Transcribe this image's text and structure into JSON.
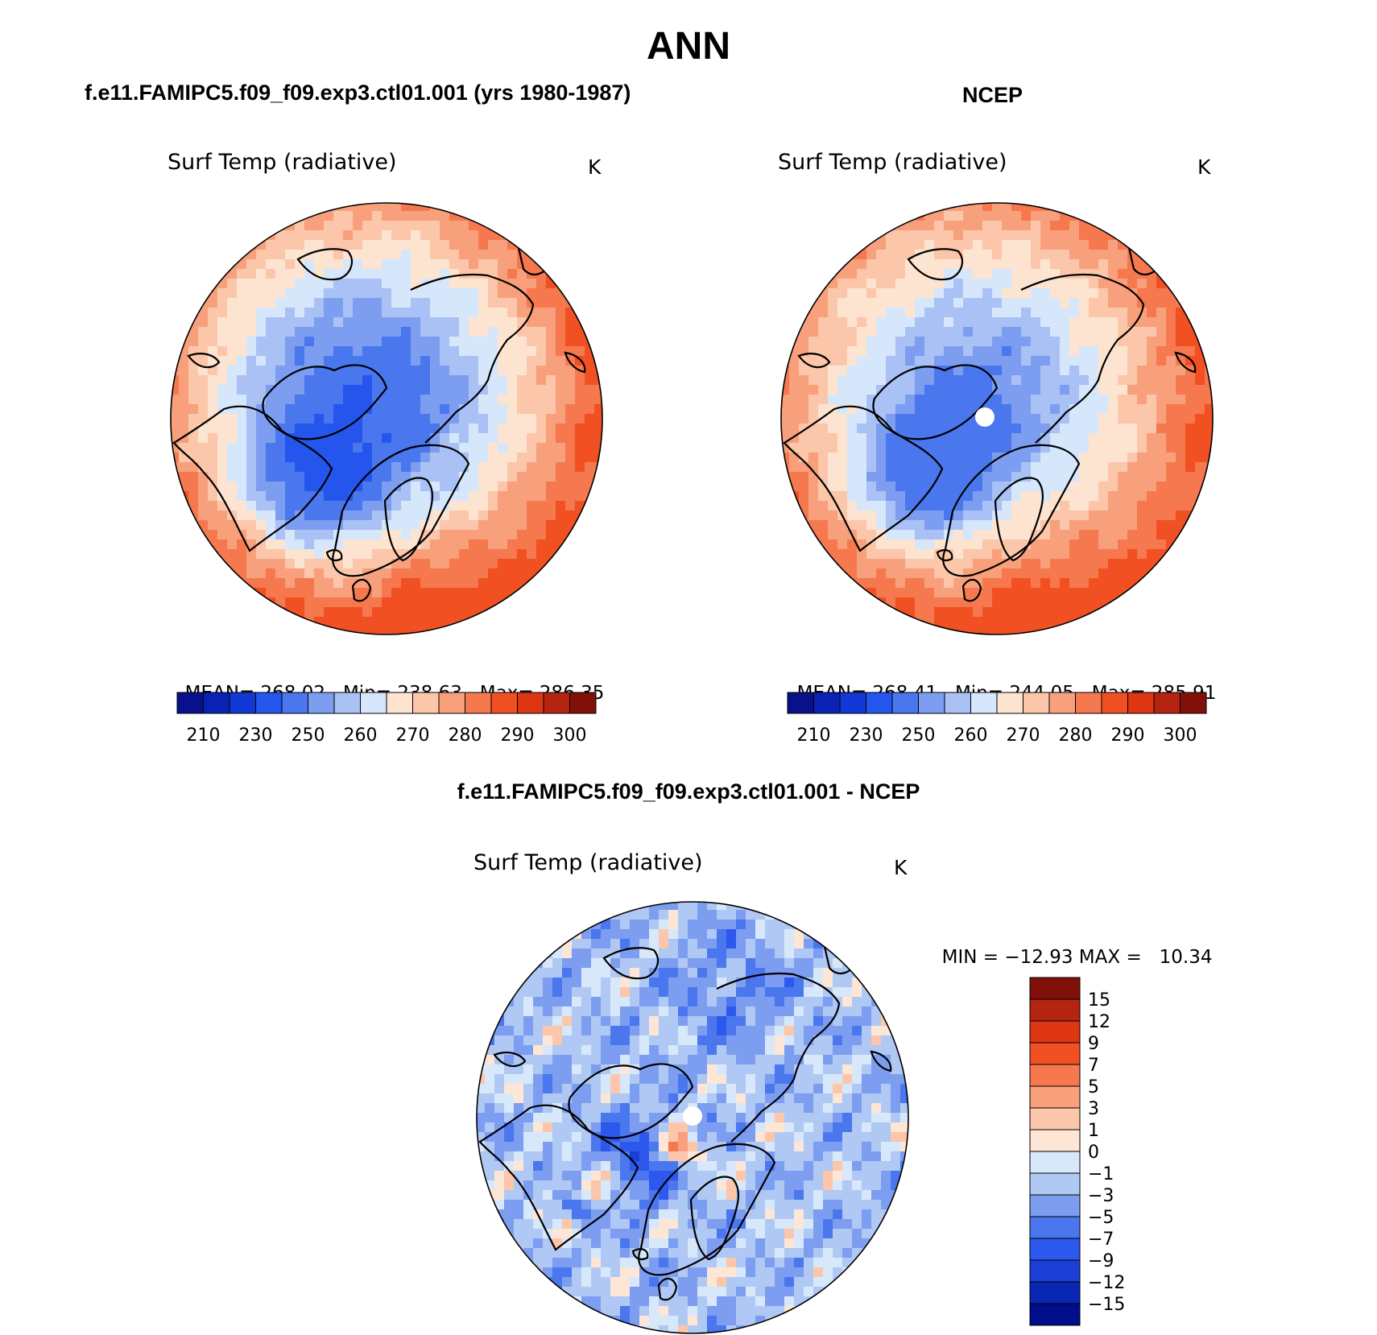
{
  "page": {
    "title": "ANN"
  },
  "chart_data": [
    {
      "type": "heatmap",
      "projection": "north polar stereographic",
      "header": "f.e11.FAMIPC5.f09_f09.exp3.ctl01.001 (yrs 1980-1987)",
      "title": "Surf Temp (radiative)",
      "units": "K",
      "stats": {
        "mean_label": "MEAN=",
        "mean": "268.02",
        "min_label": "Min=",
        "min": "238.63",
        "max_label": "Max=",
        "max": "286.35"
      },
      "colorbar": {
        "orientation": "horizontal",
        "levels": [
          210,
          220,
          230,
          240,
          250,
          255,
          260,
          265,
          270,
          275,
          280,
          285,
          290,
          295,
          300
        ],
        "tick_labels": [
          "210",
          "230",
          "250",
          "260",
          "270",
          "280",
          "290",
          "300"
        ],
        "colors": [
          "#08108c",
          "#0a22b4",
          "#1238d6",
          "#2456ee",
          "#4a76ee",
          "#7d9ef0",
          "#a9c1f4",
          "#d6e6fb",
          "#fde4d0",
          "#fbc6a9",
          "#f8a07c",
          "#f5784e",
          "#f05022",
          "#de3612",
          "#b42410",
          "#82100a"
        ]
      },
      "approx_field": {
        "pole_min": 242,
        "greenland_min": 238.63,
        "midlat_max": 286.35
      }
    },
    {
      "type": "heatmap",
      "projection": "north polar stereographic",
      "header": "NCEP",
      "title": "Surf Temp (radiative)",
      "units": "K",
      "stats": {
        "mean_label": "MEAN=",
        "mean": "268.41",
        "min_label": "Min=",
        "min": "244.05",
        "max_label": "Max=",
        "max": "285.91"
      },
      "colorbar": {
        "orientation": "horizontal",
        "levels": [
          210,
          220,
          230,
          240,
          250,
          255,
          260,
          265,
          270,
          275,
          280,
          285,
          290,
          295,
          300
        ],
        "tick_labels": [
          "210",
          "230",
          "250",
          "260",
          "270",
          "280",
          "290",
          "300"
        ],
        "colors": [
          "#08108c",
          "#0a22b4",
          "#1238d6",
          "#2456ee",
          "#4a76ee",
          "#7d9ef0",
          "#a9c1f4",
          "#d6e6fb",
          "#fde4d0",
          "#fbc6a9",
          "#f8a07c",
          "#f5784e",
          "#f05022",
          "#de3612",
          "#b42410",
          "#82100a"
        ]
      },
      "approx_field": {
        "pole_min": 248,
        "greenland_min": 244.05,
        "midlat_max": 285.91
      }
    },
    {
      "type": "heatmap",
      "projection": "north polar stereographic",
      "header": "f.e11.FAMIPC5.f09_f09.exp3.ctl01.001 - NCEP",
      "title": "Surf Temp (radiative)",
      "units": "K",
      "stats": {
        "min_label": "MIN =",
        "min": "−12.93",
        "max_label": "MAX =",
        "max": "10.34"
      },
      "colorbar": {
        "orientation": "vertical",
        "levels": [
          -15,
          -12,
          -9,
          -7,
          -5,
          -3,
          -1,
          0,
          1,
          3,
          5,
          7,
          9,
          12,
          15
        ],
        "tick_labels": [
          "15",
          "12",
          "9",
          "7",
          "5",
          "3",
          "1",
          "0",
          "−1",
          "−3",
          "−5",
          "−7",
          "−9",
          "−12",
          "−15"
        ],
        "colors": [
          "#000e8c",
          "#0a26b4",
          "#1a3ed6",
          "#2c58ee",
          "#4a76ee",
          "#7d9ef0",
          "#b0c8f4",
          "#d8e8fb",
          "#fde6d6",
          "#fbc6a9",
          "#f8a07c",
          "#f5784e",
          "#f05022",
          "#de3612",
          "#b42410",
          "#82100a"
        ]
      },
      "approx_field": {
        "min": -12.93,
        "max": 10.34
      }
    }
  ]
}
